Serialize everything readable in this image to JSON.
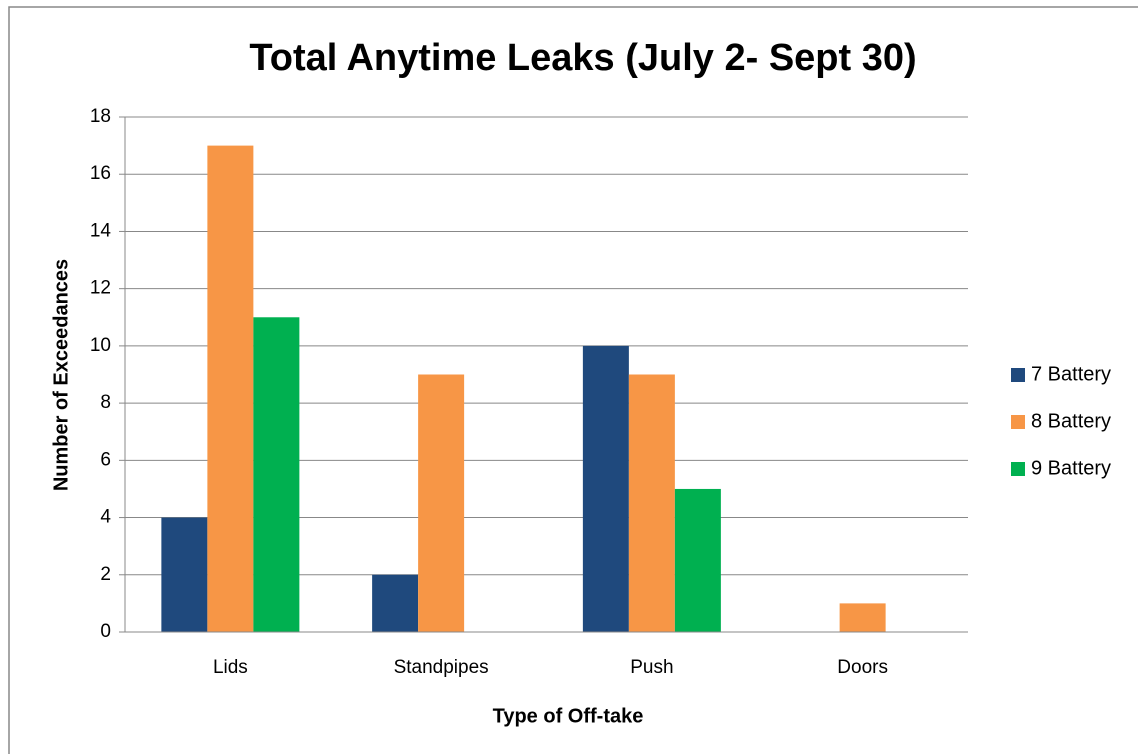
{
  "chart_data": {
    "type": "bar",
    "title": "Total Anytime Leaks (July 2- Sept 30)",
    "x_label": "Type of Off-take",
    "y_label": "Number of Exceedances",
    "categories": [
      "Lids",
      "Standpipes",
      "Push",
      "Doors"
    ],
    "series": [
      {
        "name": "7 Battery",
        "color": "#1f497d",
        "values": [
          4,
          2,
          10,
          0
        ]
      },
      {
        "name": "8 Battery",
        "color": "#f79646",
        "values": [
          17,
          9,
          9,
          1
        ]
      },
      {
        "name": "9 Battery",
        "color": "#00b050",
        "values": [
          11,
          0,
          5,
          0
        ]
      }
    ],
    "ylim": [
      0,
      18
    ],
    "yticks": [
      0,
      2,
      4,
      6,
      8,
      10,
      12,
      14,
      16,
      18
    ],
    "grid": true,
    "legend": "right"
  }
}
